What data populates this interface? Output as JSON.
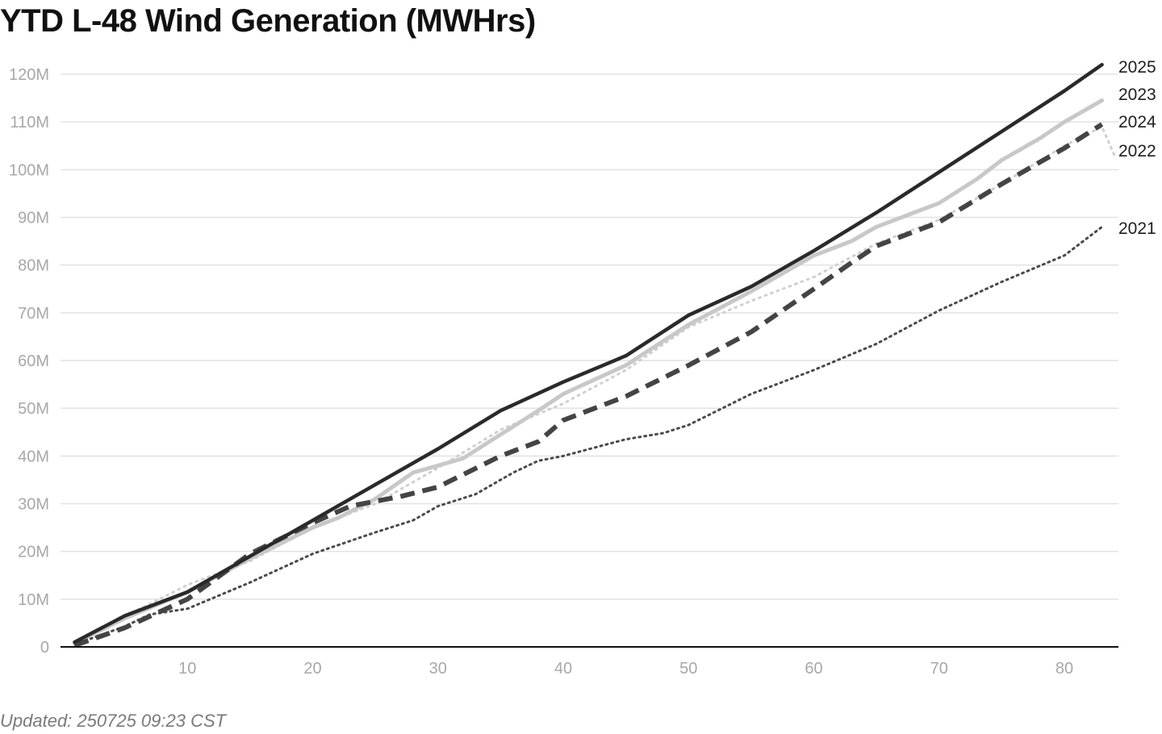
{
  "title": "YTD L-48 Wind Generation (MWHrs)",
  "footer": "Updated: 250725 09:23 CST",
  "chart_data": {
    "type": "line",
    "title": "YTD L-48 Wind Generation (MWHrs)",
    "xlabel": "",
    "ylabel": "",
    "xlim": [
      0,
      84
    ],
    "ylim": [
      0,
      120000000
    ],
    "x_ticks": [
      10,
      20,
      30,
      40,
      50,
      60,
      70,
      80
    ],
    "x_tick_labels": [
      "10",
      "20",
      "30",
      "40",
      "50",
      "60",
      "70",
      "80"
    ],
    "y_ticks": [
      0,
      10000000,
      20000000,
      30000000,
      40000000,
      50000000,
      60000000,
      70000000,
      80000000,
      90000000,
      100000000,
      110000000,
      120000000
    ],
    "y_tick_labels": [
      "0",
      "10M",
      "20M",
      "30M",
      "40M",
      "50M",
      "60M",
      "70M",
      "80M",
      "90M",
      "100M",
      "110M",
      "120M"
    ],
    "grid": true,
    "legend": "direct labels at right end of lines",
    "series": [
      {
        "name": "2021",
        "color": "#4a4a4a",
        "style": "dotted",
        "points": [
          [
            1,
            0.5
          ],
          [
            5,
            4.3
          ],
          [
            7,
            6.8
          ],
          [
            10,
            8.0
          ],
          [
            15,
            13.5
          ],
          [
            20,
            19.5
          ],
          [
            25,
            24.0
          ],
          [
            28,
            26.5
          ],
          [
            30,
            29.5
          ],
          [
            33,
            32.0
          ],
          [
            36,
            36.5
          ],
          [
            38,
            39.0
          ],
          [
            40,
            40.0
          ],
          [
            45,
            43.5
          ],
          [
            48,
            44.8
          ],
          [
            50,
            46.5
          ],
          [
            55,
            53.0
          ],
          [
            58,
            56.0
          ],
          [
            60,
            58.0
          ],
          [
            65,
            63.5
          ],
          [
            70,
            70.5
          ],
          [
            75,
            76.5
          ],
          [
            80,
            82.0
          ],
          [
            83,
            88.0
          ]
        ]
      },
      {
        "name": "2022",
        "color": "#d0d0d0",
        "style": "dotted",
        "points": [
          [
            1,
            1.0
          ],
          [
            5,
            6.5
          ],
          [
            7,
            9.0
          ],
          [
            10,
            13.0
          ],
          [
            15,
            18.0
          ],
          [
            20,
            25.0
          ],
          [
            25,
            30.0
          ],
          [
            30,
            37.5
          ],
          [
            35,
            45.5
          ],
          [
            40,
            51.0
          ],
          [
            45,
            58.0
          ],
          [
            50,
            67.0
          ],
          [
            55,
            72.5
          ],
          [
            60,
            77.5
          ],
          [
            65,
            84.5
          ],
          [
            70,
            89.5
          ],
          [
            75,
            97.0
          ],
          [
            80,
            105.0
          ],
          [
            83,
            109.0
          ],
          [
            84,
            103.0
          ]
        ]
      },
      {
        "name": "2023",
        "color": "#c8c8c8",
        "style": "solid",
        "points": [
          [
            1,
            0.8
          ],
          [
            5,
            6.0
          ],
          [
            10,
            11.5
          ],
          [
            15,
            18.5
          ],
          [
            20,
            25.0
          ],
          [
            22,
            27.0
          ],
          [
            25,
            31.0
          ],
          [
            28,
            36.5
          ],
          [
            30,
            38.0
          ],
          [
            32,
            39.5
          ],
          [
            35,
            44.5
          ],
          [
            38,
            49.5
          ],
          [
            40,
            53.0
          ],
          [
            45,
            59.0
          ],
          [
            50,
            67.5
          ],
          [
            55,
            74.5
          ],
          [
            60,
            82.0
          ],
          [
            63,
            85.0
          ],
          [
            65,
            88.0
          ],
          [
            70,
            93.0
          ],
          [
            73,
            98.0
          ],
          [
            75,
            102.0
          ],
          [
            78,
            106.5
          ],
          [
            80,
            110.0
          ],
          [
            83,
            114.5
          ]
        ]
      },
      {
        "name": "2024",
        "color": "#444444",
        "style": "dashed",
        "points": [
          [
            1,
            0.3
          ],
          [
            5,
            4.0
          ],
          [
            10,
            10.0
          ],
          [
            15,
            19.5
          ],
          [
            20,
            26.0
          ],
          [
            23,
            29.5
          ],
          [
            27,
            31.5
          ],
          [
            30,
            33.5
          ],
          [
            35,
            40.0
          ],
          [
            38,
            43.0
          ],
          [
            40,
            47.5
          ],
          [
            45,
            52.5
          ],
          [
            50,
            59.0
          ],
          [
            55,
            66.0
          ],
          [
            60,
            75.0
          ],
          [
            63,
            80.5
          ],
          [
            65,
            84.0
          ],
          [
            70,
            89.0
          ],
          [
            75,
            97.0
          ],
          [
            80,
            104.5
          ],
          [
            83,
            109.5
          ]
        ]
      },
      {
        "name": "2025",
        "color": "#2a2a2a",
        "style": "solid",
        "points": [
          [
            1,
            1.0
          ],
          [
            5,
            6.5
          ],
          [
            10,
            11.5
          ],
          [
            15,
            19.0
          ],
          [
            20,
            26.5
          ],
          [
            25,
            34.0
          ],
          [
            30,
            41.5
          ],
          [
            35,
            49.5
          ],
          [
            40,
            55.5
          ],
          [
            45,
            61.0
          ],
          [
            50,
            69.5
          ],
          [
            55,
            75.5
          ],
          [
            60,
            83.0
          ],
          [
            65,
            91.0
          ],
          [
            70,
            99.5
          ],
          [
            75,
            108.0
          ],
          [
            80,
            116.5
          ],
          [
            83,
            122.0
          ]
        ]
      }
    ],
    "y_unit_note": "series point y values in millions (M)"
  }
}
